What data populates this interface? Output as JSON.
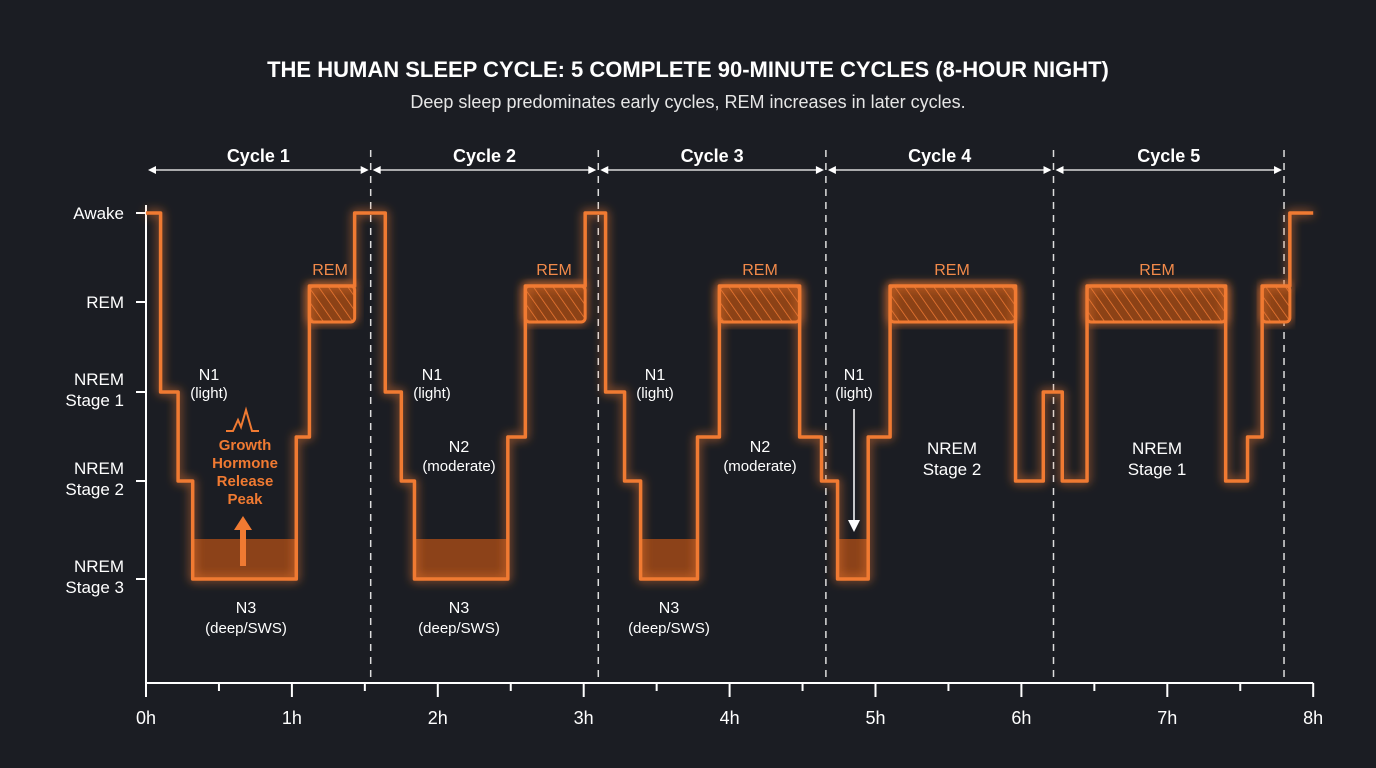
{
  "title": "THE HUMAN SLEEP CYCLE: 5 COMPLETE 90-MINUTE CYCLES (8-HOUR NIGHT)",
  "subtitle": "Deep sleep predominates early cycles, REM increases in later cycles.",
  "colors": {
    "background": "#1b1d23",
    "line": "#f07a32",
    "n3_fill": "#8c4219",
    "text": "#ffffff",
    "accent_text": "#f07a32"
  },
  "y_axis": {
    "levels": [
      {
        "depth": 0,
        "line1": "Awake",
        "line2": ""
      },
      {
        "depth": 1,
        "line1": "REM",
        "line2": ""
      },
      {
        "depth": 2,
        "line1": "NREM",
        "line2": "Stage 1"
      },
      {
        "depth": 3,
        "line1": "NREM",
        "line2": "Stage 2"
      },
      {
        "depth": 4,
        "line1": "NREM",
        "line2": "Stage 3"
      }
    ]
  },
  "x_axis": {
    "ticks": [
      "0h",
      "1h",
      "2h",
      "3h",
      "4h",
      "5h",
      "6h",
      "7h",
      "8h"
    ],
    "range_hours": [
      0,
      8
    ],
    "minor_tick_step_hours": 0.5
  },
  "cycles": [
    {
      "label": "Cycle 1",
      "start_h": 0,
      "end_h": 1.54
    },
    {
      "label": "Cycle 2",
      "start_h": 1.54,
      "end_h": 3.1
    },
    {
      "label": "Cycle 3",
      "start_h": 3.1,
      "end_h": 4.66
    },
    {
      "label": "Cycle 4",
      "start_h": 4.66,
      "end_h": 6.22
    },
    {
      "label": "Cycle 5",
      "start_h": 6.22,
      "end_h": 7.8
    }
  ],
  "hypnogram": [
    [
      0,
      0
    ],
    [
      0.1,
      2
    ],
    [
      0.22,
      3
    ],
    [
      0.32,
      4
    ],
    [
      1.03,
      2.5
    ],
    [
      1.12,
      1
    ],
    [
      1.43,
      0
    ],
    [
      1.64,
      2
    ],
    [
      1.75,
      3
    ],
    [
      1.84,
      4
    ],
    [
      2.48,
      2.5
    ],
    [
      2.6,
      1
    ],
    [
      3.01,
      0
    ],
    [
      3.15,
      2
    ],
    [
      3.28,
      3
    ],
    [
      3.39,
      4
    ],
    [
      3.78,
      2.5
    ],
    [
      3.93,
      1
    ],
    [
      4.48,
      2.5
    ],
    [
      4.63,
      3
    ],
    [
      4.74,
      4
    ],
    [
      4.95,
      2.5
    ],
    [
      5.1,
      1
    ],
    [
      5.96,
      3
    ],
    [
      6.15,
      2
    ],
    [
      6.28,
      3
    ],
    [
      6.45,
      1
    ],
    [
      7.4,
      3
    ],
    [
      7.55,
      2.5
    ],
    [
      7.65,
      1
    ],
    [
      7.84,
      0
    ],
    [
      8,
      0
    ]
  ],
  "annotations": {
    "rem": "REM",
    "n1": "N1",
    "n1_sub": "(light)",
    "n2": "N2",
    "n2_sub": "(moderate)",
    "n3": "N3",
    "n3_sub": "(deep/SWS)",
    "nrem": "NREM",
    "stage2": "Stage 2",
    "stage1": "Stage 1",
    "growth_hormone": [
      "Growth",
      "Hormone",
      "Release",
      "Peak"
    ]
  }
}
